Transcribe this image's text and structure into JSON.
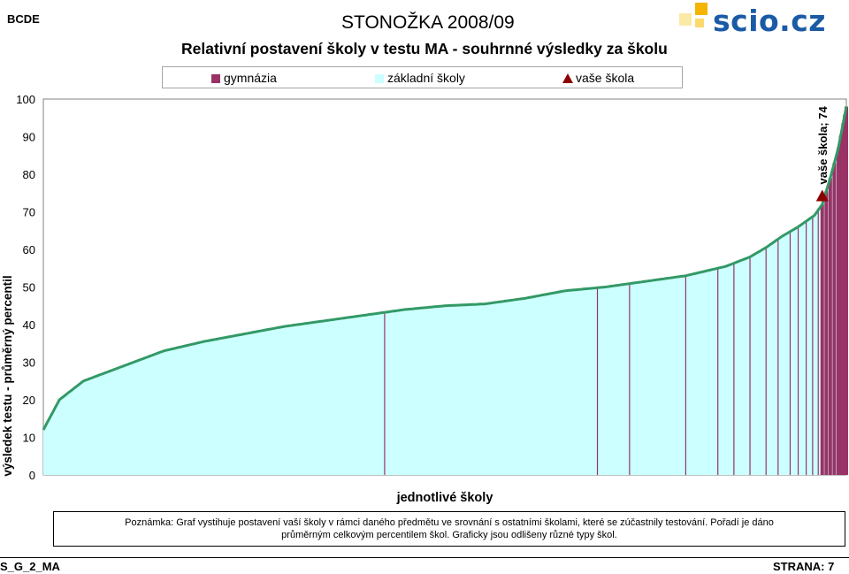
{
  "header": {
    "left_label": "BCDE",
    "title": "STONOŽKA 2008/09",
    "logo_text": "scio.cz"
  },
  "chart_data": {
    "type": "area",
    "title": "Relativní postavení školy v testu MA - souhrnné výsledky za školu",
    "xlabel": "jednotlivé školy",
    "ylabel": "výsledek testu - průměrný percentil",
    "ylim": [
      0,
      100
    ],
    "yticks": [
      "0",
      "10",
      "20",
      "30",
      "40",
      "50",
      "60",
      "70",
      "80",
      "90",
      "100"
    ],
    "series": [
      {
        "name": "gymnázia",
        "color": "#993366"
      },
      {
        "name": "základní školy",
        "color": "#ccffff"
      },
      {
        "name": "vaše škola",
        "color": "#8b0000"
      }
    ],
    "curve_color": "#339966",
    "x": [
      0,
      2,
      5,
      10,
      15,
      20,
      25,
      30,
      35,
      40,
      45,
      50,
      55,
      60,
      65,
      70,
      75,
      80,
      82,
      85,
      88,
      90,
      92,
      94,
      96,
      97,
      98,
      99,
      100
    ],
    "y": [
      12,
      20,
      25,
      29,
      33,
      35.5,
      37.5,
      39.5,
      41,
      42.5,
      44,
      45,
      45.5,
      47,
      49,
      50,
      51.5,
      53,
      54,
      55.5,
      58,
      60.5,
      63.5,
      66,
      69,
      72,
      79,
      87,
      98
    ],
    "gymnazia_x": [
      42.5,
      69,
      73,
      80,
      84,
      86,
      88,
      90,
      91.5,
      93,
      94,
      95,
      95.8,
      96.5,
      97,
      97.5,
      98,
      98.5,
      99,
      99.3,
      99.6,
      99.8,
      100
    ],
    "your_school": {
      "label": "vaše škola; 74",
      "value": 74,
      "x": 97
    }
  },
  "note": {
    "line1": "Poznámka: Graf vystihuje postavení vaší školy v rámci daného předmětu ve srovnání s ostatními školami, které se zúčastnily testování. Pořadí je dáno",
    "line2": "průměrným celkovým percentilem škol. Graficky jsou odlišeny různé typy škol."
  },
  "footer": {
    "left": "S_G_2_MA",
    "right": "STRANA: 7"
  }
}
